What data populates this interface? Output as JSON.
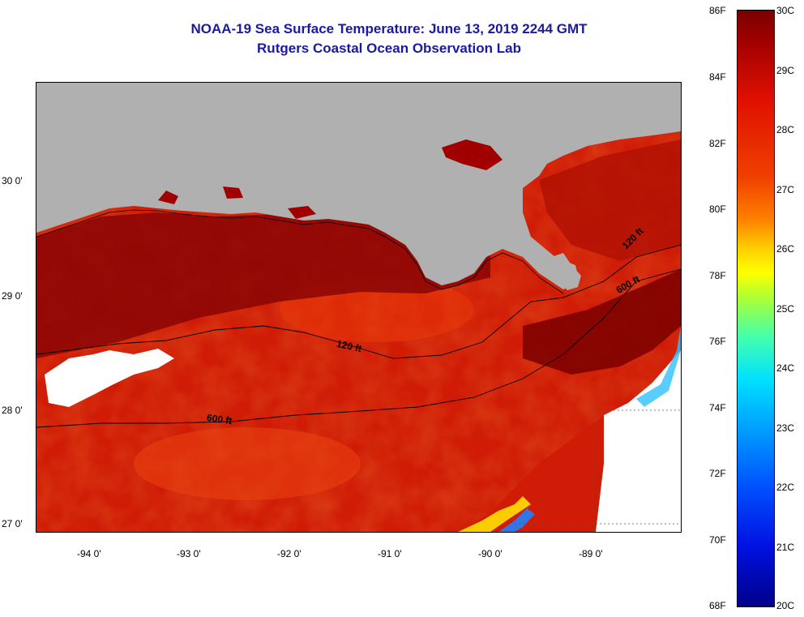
{
  "header": {
    "title": "NOAA-19 Sea Surface Temperature:  June 13, 2019 2244 GMT",
    "subtitle": "Rutgers Coastal Ocean Observation Lab"
  },
  "map": {
    "lat_labels": [
      "30 0'",
      "29 0'",
      "28 0'",
      "27 0'"
    ],
    "lon_labels": [
      "-94 0'",
      "-93 0'",
      "-92 0'",
      "-91 0'",
      "-90 0'",
      "-89 0'"
    ],
    "contour_labels": {
      "c1": "120 ft",
      "c2": "600 ft",
      "c3": "120 ft",
      "c4": "600 ft"
    },
    "colors": {
      "land": "#b0b0b0",
      "cloud": "#ffffff",
      "warm": "#7a0000",
      "sea": "#d01c06"
    }
  },
  "colorbar": {
    "fahrenheit": [
      "86F",
      "84F",
      "82F",
      "80F",
      "78F",
      "76F",
      "74F",
      "72F",
      "70F",
      "68F"
    ],
    "celsius": [
      "30C",
      "29C",
      "28C",
      "27C",
      "26C",
      "25C",
      "24C",
      "23C",
      "22C",
      "21C",
      "20C"
    ]
  }
}
